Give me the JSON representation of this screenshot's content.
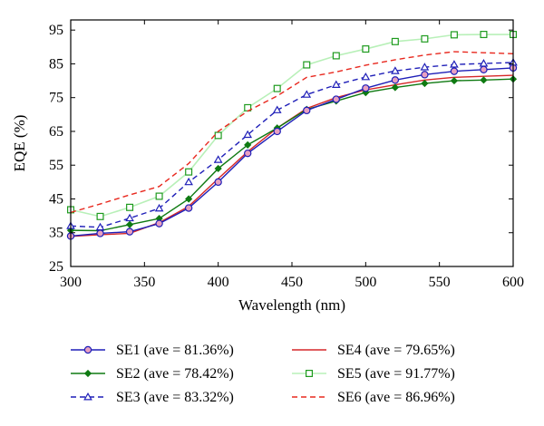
{
  "chart_data": {
    "type": "line",
    "xlabel": "Wavelength (nm)",
    "ylabel": "EQE (%)",
    "xlim": [
      300,
      600
    ],
    "ylim": [
      25,
      98
    ],
    "xticks": [
      300,
      350,
      400,
      450,
      500,
      550,
      600
    ],
    "yticks": [
      25,
      35,
      45,
      55,
      65,
      75,
      85,
      95
    ],
    "grid": false,
    "legend_position": "below",
    "x": [
      300,
      320,
      340,
      360,
      380,
      400,
      420,
      440,
      460,
      480,
      500,
      520,
      540,
      560,
      580,
      600
    ],
    "series": [
      {
        "name": "SE1 (ave = 81.36%)",
        "color": "#1f1fb8",
        "line": "solid",
        "marker": "circle",
        "values": [
          34.0,
          34.8,
          35.3,
          37.7,
          42.3,
          50.0,
          58.5,
          65.0,
          71.2,
          74.5,
          77.8,
          80.2,
          81.8,
          82.8,
          83.3,
          83.8
        ]
      },
      {
        "name": "SE2 (ave = 78.42%)",
        "color": "#0f7a12",
        "line": "solid",
        "marker": "diamond",
        "values": [
          35.7,
          35.6,
          37.4,
          39.2,
          45.0,
          54.0,
          61.0,
          66.0,
          71.5,
          74.0,
          76.5,
          78.0,
          79.2,
          80.0,
          80.2,
          80.5
        ]
      },
      {
        "name": "SE3 (ave = 83.32%)",
        "color": "#1f1fb8",
        "line": "dashed",
        "marker": "triangle",
        "values": [
          37.0,
          36.6,
          39.3,
          42.2,
          50.0,
          56.6,
          64.0,
          71.3,
          75.9,
          78.8,
          81.1,
          82.9,
          84.0,
          84.8,
          85.1,
          85.4
        ]
      },
      {
        "name": "SE4 (ave = 79.65%)",
        "color": "#d62728",
        "line": "solid",
        "marker": "none",
        "values": [
          33.9,
          34.4,
          34.8,
          38.0,
          42.8,
          51.0,
          59.0,
          66.0,
          71.8,
          75.0,
          77.3,
          78.8,
          80.2,
          81.0,
          81.3,
          81.6
        ]
      },
      {
        "name": "SE5 (ave = 91.77%)",
        "color": "#1e9a1e",
        "line": "light",
        "marker": "square",
        "values": [
          41.8,
          39.8,
          42.5,
          45.8,
          53.0,
          63.8,
          72.0,
          77.7,
          84.7,
          87.4,
          89.4,
          91.6,
          92.4,
          93.6,
          93.7,
          93.7
        ]
      },
      {
        "name": "SE6 (ave = 86.96%)",
        "color": "#e8281e",
        "line": "dashed",
        "marker": "none",
        "values": [
          41.0,
          43.5,
          46.2,
          48.7,
          55.5,
          65.0,
          71.0,
          75.5,
          81.0,
          82.6,
          84.6,
          86.2,
          87.6,
          88.6,
          88.3,
          88.0
        ]
      }
    ]
  }
}
